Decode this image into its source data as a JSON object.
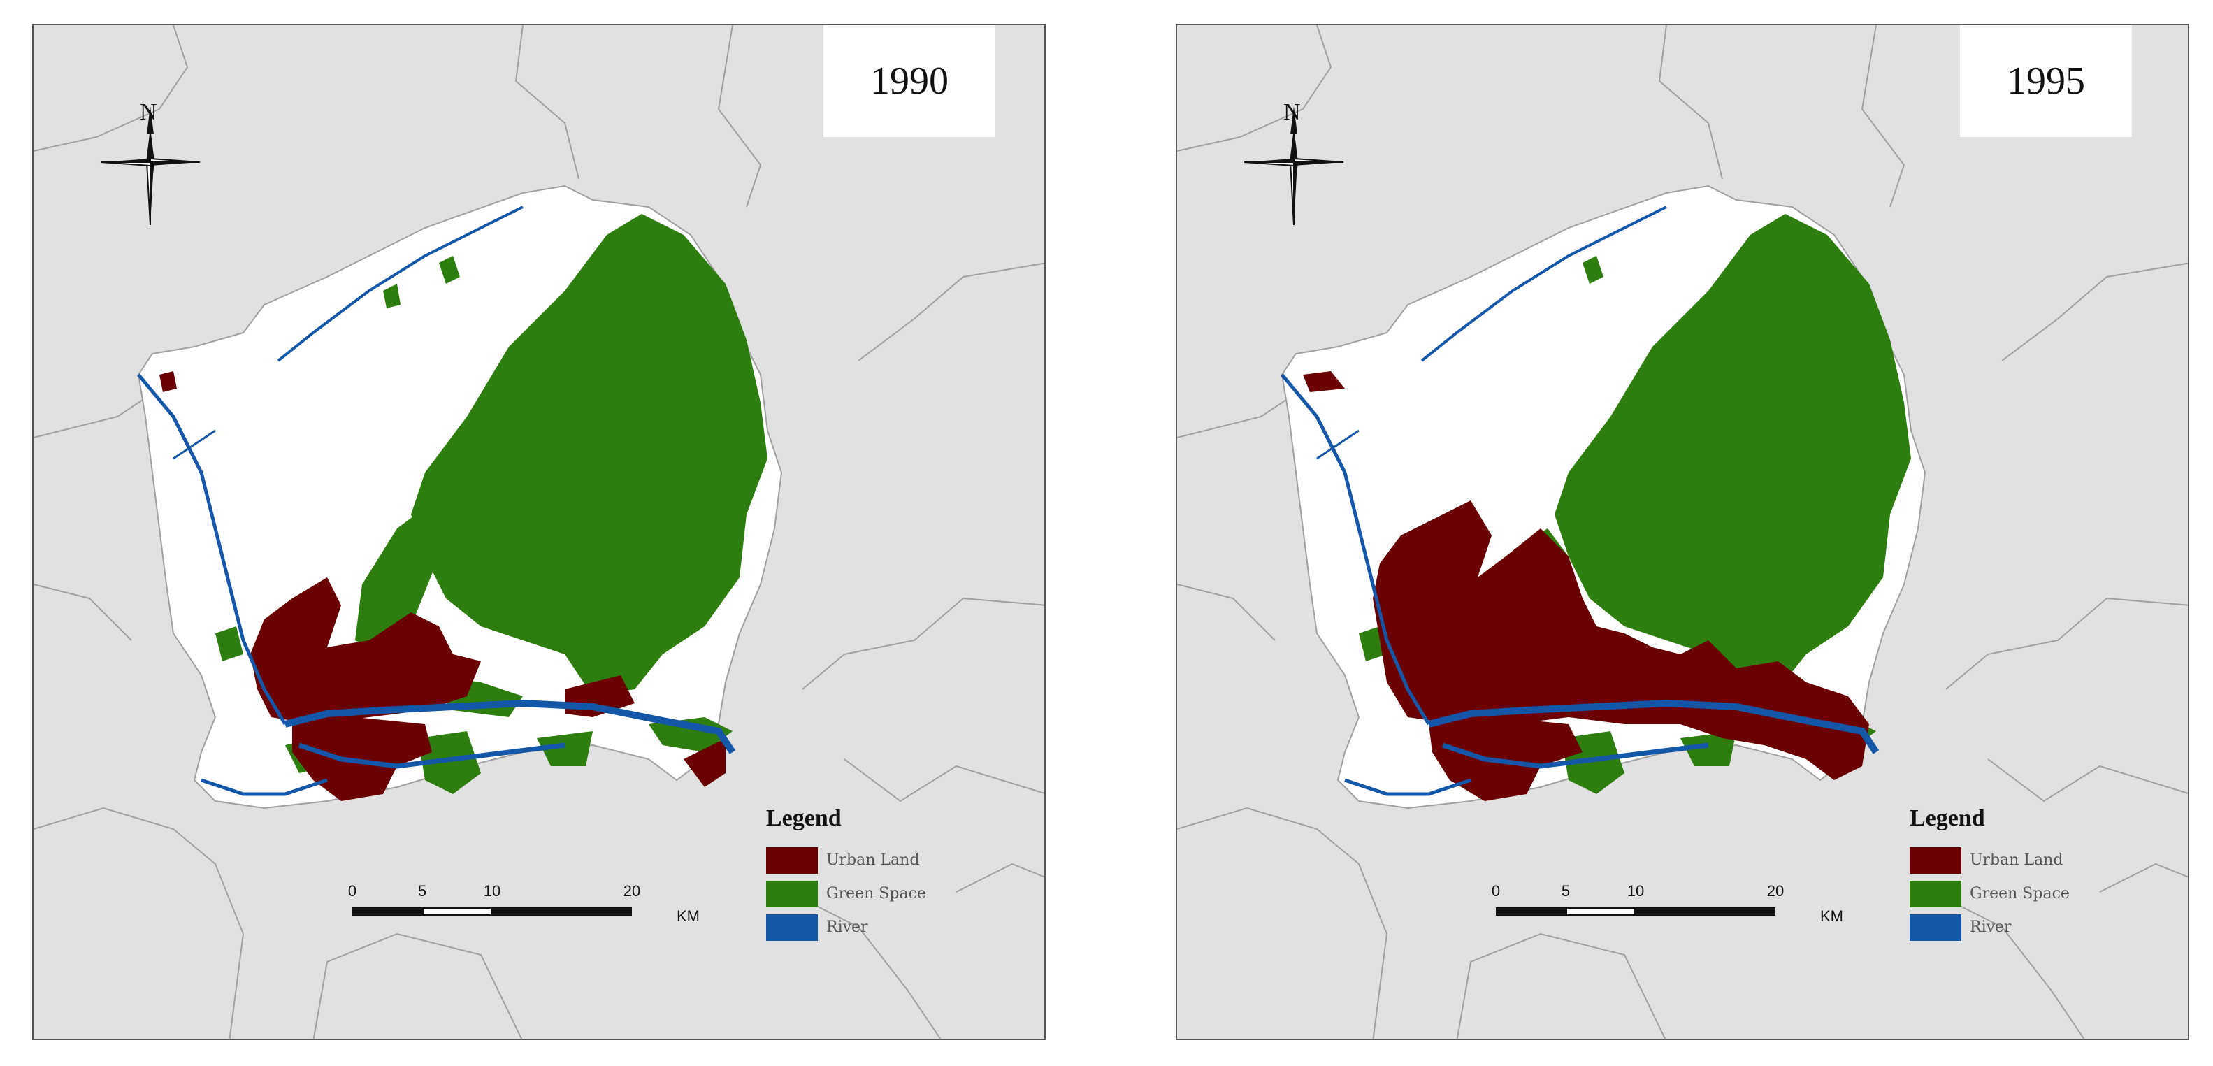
{
  "panels": [
    {
      "year": "1990",
      "urban_extent": "small"
    },
    {
      "year": "1995",
      "urban_extent": "large"
    }
  ],
  "north_arrow": {
    "label": "N"
  },
  "legend": {
    "title": "Legend",
    "items": [
      {
        "label": "Urban Land",
        "color": "#6b0000"
      },
      {
        "label": "Green Space",
        "color": "#2e7d0f"
      },
      {
        "label": "River",
        "color": "#1457a8"
      }
    ]
  },
  "scale_bar": {
    "ticks": [
      "0",
      "5",
      "10",
      "20"
    ],
    "unit": "KM"
  },
  "colors": {
    "background": "#e1e1e1",
    "study_area": "#ffffff",
    "boundaries": "#a0a0a0"
  }
}
